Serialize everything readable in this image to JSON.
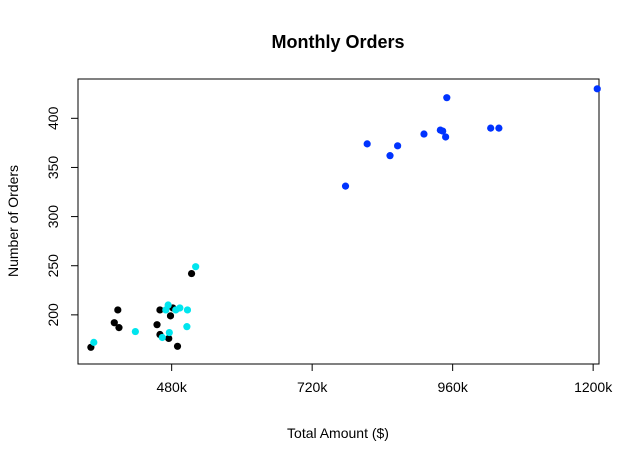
{
  "chart_data": {
    "type": "scatter",
    "title": "Monthly Orders",
    "xlabel": "Total Amount ($)",
    "ylabel": "Number of Orders",
    "xlim": [
      320000,
      1210000
    ],
    "ylim": [
      150,
      440
    ],
    "x_ticks": [
      {
        "value": 480000,
        "label": "480k"
      },
      {
        "value": 720000,
        "label": "720k"
      },
      {
        "value": 960000,
        "label": "960k"
      },
      {
        "value": 1200000,
        "label": "1200k"
      }
    ],
    "y_ticks": [
      {
        "value": 200,
        "label": "200"
      },
      {
        "value": 250,
        "label": "250"
      },
      {
        "value": 300,
        "label": "300"
      },
      {
        "value": 350,
        "label": "350"
      },
      {
        "value": 400,
        "label": "400"
      }
    ],
    "grid": false,
    "series": [
      {
        "color": "#000000",
        "points": [
          {
            "x": 342000,
            "y": 167
          },
          {
            "x": 382000,
            "y": 192
          },
          {
            "x": 388000,
            "y": 205
          },
          {
            "x": 390000,
            "y": 187
          },
          {
            "x": 455000,
            "y": 190
          },
          {
            "x": 460000,
            "y": 205
          },
          {
            "x": 460000,
            "y": 180
          },
          {
            "x": 475000,
            "y": 176
          },
          {
            "x": 478000,
            "y": 199
          },
          {
            "x": 482000,
            "y": 207
          },
          {
            "x": 490000,
            "y": 168
          },
          {
            "x": 514000,
            "y": 242
          }
        ]
      },
      {
        "color": "#00E5EE",
        "points": [
          {
            "x": 347000,
            "y": 172
          },
          {
            "x": 418000,
            "y": 183
          },
          {
            "x": 464000,
            "y": 177
          },
          {
            "x": 470000,
            "y": 205
          },
          {
            "x": 474000,
            "y": 210
          },
          {
            "x": 476000,
            "y": 182
          },
          {
            "x": 487000,
            "y": 205
          },
          {
            "x": 494000,
            "y": 207
          },
          {
            "x": 506000,
            "y": 188
          },
          {
            "x": 507000,
            "y": 205
          },
          {
            "x": 521000,
            "y": 249
          }
        ]
      },
      {
        "color": "#0033FF",
        "points": [
          {
            "x": 777000,
            "y": 331
          },
          {
            "x": 814000,
            "y": 374
          },
          {
            "x": 853000,
            "y": 362
          },
          {
            "x": 866000,
            "y": 372
          },
          {
            "x": 911000,
            "y": 384
          },
          {
            "x": 939000,
            "y": 388
          },
          {
            "x": 943000,
            "y": 387
          },
          {
            "x": 948000,
            "y": 381
          },
          {
            "x": 950000,
            "y": 421
          },
          {
            "x": 1025000,
            "y": 390
          },
          {
            "x": 1039000,
            "y": 390
          },
          {
            "x": 1207000,
            "y": 430
          }
        ]
      }
    ]
  }
}
